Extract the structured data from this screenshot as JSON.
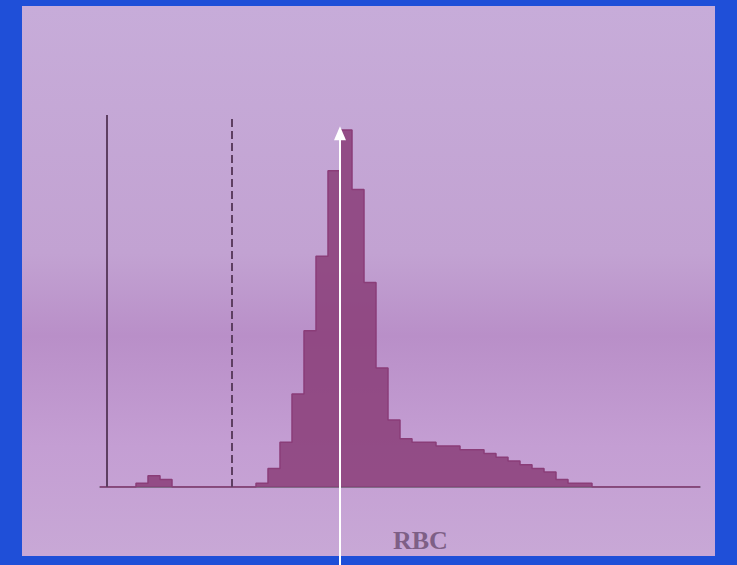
{
  "chart_data": {
    "type": "histogram",
    "title": "RBC",
    "bins": [
      0,
      5,
      10,
      15,
      20,
      25,
      30,
      35,
      40,
      45,
      50,
      55,
      60,
      65,
      70,
      75,
      80,
      85,
      90,
      95,
      100,
      105,
      110,
      115,
      120,
      125,
      130,
      135,
      140,
      145,
      150,
      155,
      160,
      165,
      170,
      175,
      180,
      185,
      190,
      195,
      200,
      205,
      210,
      215,
      220,
      225,
      230,
      235,
      240,
      245,
      250
    ],
    "values": [
      0,
      0,
      0,
      1,
      3,
      2,
      0,
      0,
      0,
      0,
      0,
      0,
      0,
      1,
      5,
      12,
      25,
      42,
      62,
      85,
      96,
      80,
      55,
      32,
      18,
      13,
      12,
      12,
      11,
      11,
      10,
      10,
      9,
      8,
      7,
      6,
      5,
      4,
      2,
      1,
      1,
      0,
      0,
      0,
      0,
      0,
      0,
      0,
      0,
      0
    ],
    "color": "#8a3d78",
    "xlim": [
      0,
      250
    ],
    "ylim": [
      0,
      100
    ],
    "tick_labels": false,
    "grid": false,
    "discriminators": [
      {
        "x": 3,
        "line_style": "solid"
      },
      {
        "x": 55,
        "line_style": "dashed"
      }
    ],
    "arrow": {
      "x": 100,
      "y": 97,
      "color": "#ffffff"
    }
  }
}
